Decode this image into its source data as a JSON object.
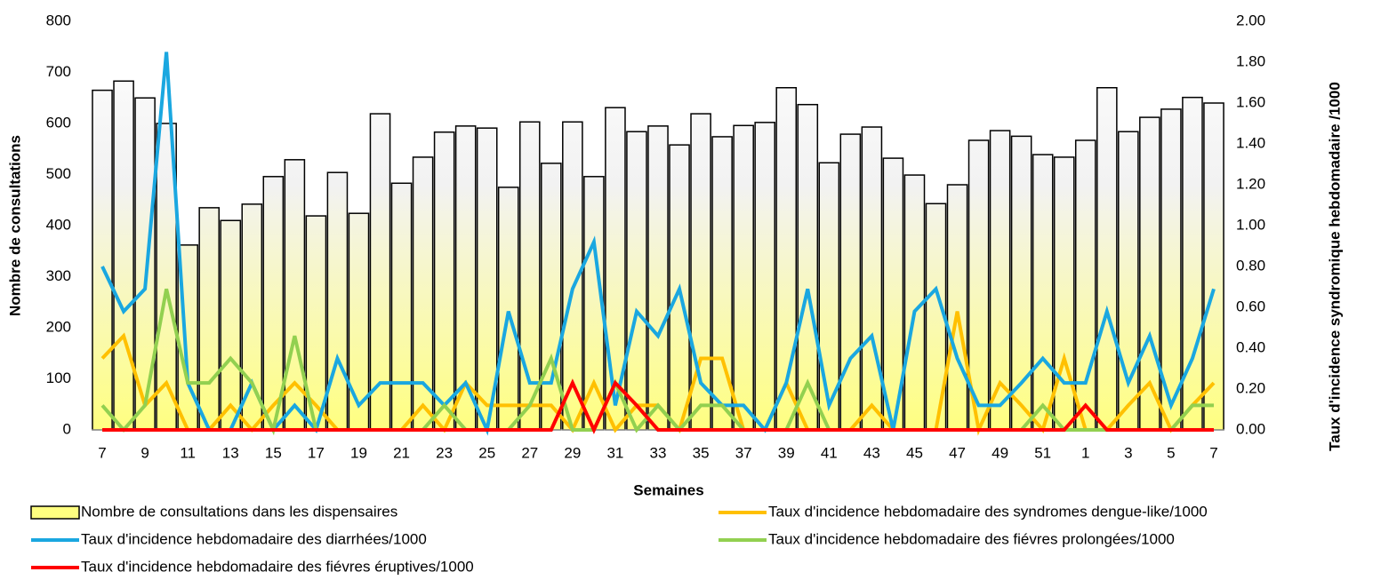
{
  "chart_data": {
    "type": "bar-line",
    "x_label": "Semaines",
    "y_label": "Nombre de consultations",
    "y2_label": "Taux d'incidence syndromique hebdomadaire /1000",
    "categories": [
      "7",
      null,
      "9",
      null,
      "11",
      null,
      "13",
      null,
      "15",
      null,
      "17",
      null,
      "19",
      null,
      "21",
      null,
      "23",
      null,
      "25",
      null,
      "27",
      null,
      "29",
      null,
      "31",
      null,
      "33",
      null,
      "35",
      null,
      "37",
      null,
      "39",
      null,
      "41",
      null,
      "43",
      null,
      "45",
      null,
      "47",
      null,
      "49",
      null,
      "51",
      null,
      "1",
      null,
      "3",
      null,
      "5",
      null,
      "7"
    ],
    "ylim": [
      0,
      800
    ],
    "yticks": [
      0,
      100,
      200,
      300,
      400,
      500,
      600,
      700,
      800
    ],
    "y2lim": [
      0,
      2
    ],
    "y2ticks": [
      {
        "value": 0,
        "label": "0.00"
      },
      {
        "value": 0.2,
        "label": "0.20"
      },
      {
        "value": 0.4,
        "label": "0.40"
      },
      {
        "value": 0.6,
        "label": "0.60"
      },
      {
        "value": 0.8,
        "label": "0.80"
      },
      {
        "value": 1,
        "label": "1.00"
      },
      {
        "value": 1.2,
        "label": "1.20"
      },
      {
        "value": 1.4,
        "label": "1.40"
      },
      {
        "value": 1.6,
        "label": "1.60"
      },
      {
        "value": 1.8,
        "label": "1.80"
      },
      {
        "value": 2,
        "label": "2.00"
      }
    ],
    "series": [
      {
        "name": "Nombre de consultations dans les dispensaires",
        "type": "bar",
        "color": "#ffff80",
        "values": [
          665,
          683,
          650,
          600,
          362,
          435,
          410,
          442,
          496,
          529,
          419,
          504,
          424,
          619,
          483,
          534,
          583,
          595,
          591,
          475,
          603,
          522,
          603,
          496,
          631,
          584,
          595,
          558,
          619,
          574,
          596,
          602,
          670,
          637,
          523,
          579,
          593,
          532,
          499,
          443,
          480,
          567,
          586,
          575,
          539,
          534,
          567,
          670,
          584,
          612,
          628,
          651,
          640
        ]
      },
      {
        "name": "Taux d'incidence hebdomadaire des syndromes dengue-like/1000",
        "type": "line",
        "axis": "y2",
        "color": "#ffc000",
        "values": [
          0.35,
          0.46,
          0.12,
          0.23,
          0,
          0,
          0.12,
          0,
          0.12,
          0.23,
          0.12,
          0,
          0,
          0,
          0,
          0.12,
          0,
          0.23,
          0.12,
          0.12,
          0.12,
          0.12,
          0,
          0.23,
          0,
          0.12,
          0.12,
          0,
          0.35,
          0.35,
          0,
          0,
          0.23,
          0,
          0,
          0,
          0.12,
          0,
          0,
          0,
          0.58,
          0,
          0.23,
          0.12,
          0,
          0.35,
          0,
          0,
          0.12,
          0.23,
          0,
          0.12,
          0.23
        ]
      },
      {
        "name": "Taux d'incidence hebdomadaire des diarrhées/1000",
        "type": "line",
        "axis": "y2",
        "color": "#1aa7e0",
        "values": [
          0.8,
          0.58,
          0.69,
          1.85,
          0.23,
          0,
          0,
          0.23,
          0,
          0.12,
          0,
          0.35,
          0.12,
          0.23,
          0.23,
          0.23,
          0.12,
          0.23,
          0,
          0.58,
          0.23,
          0.23,
          0.69,
          0.92,
          0.12,
          0.58,
          0.46,
          0.69,
          0.23,
          0.12,
          0.12,
          0,
          0.23,
          0.69,
          0.12,
          0.35,
          0.46,
          0,
          0.58,
          0.69,
          0.35,
          0.12,
          0.12,
          0.23,
          0.35,
          0.23,
          0.23,
          0.58,
          0.23,
          0.46,
          0.12,
          0.35,
          0.69
        ]
      },
      {
        "name": "Taux d'incidence hebdomadaire des fiévres prolongées/1000",
        "type": "line",
        "axis": "y2",
        "color": "#92d050",
        "values": [
          0.12,
          0,
          0.12,
          0.69,
          0.23,
          0.23,
          0.35,
          0.23,
          0,
          0.46,
          0,
          0,
          0,
          0,
          0,
          0,
          0.12,
          0,
          0,
          0,
          0.12,
          0.35,
          0,
          0,
          0.23,
          0,
          0.12,
          0,
          0.12,
          0.12,
          0,
          0,
          0,
          0.23,
          0,
          0,
          0,
          0,
          0,
          0,
          0,
          0,
          0,
          0,
          0.12,
          0,
          0,
          0,
          0,
          0,
          0,
          0.12,
          0.12
        ]
      },
      {
        "name": "Taux d'incidence hebdomadaire des fiévres éruptives/1000",
        "type": "line",
        "axis": "y2",
        "color": "#ff0000",
        "values": [
          0,
          0,
          0,
          0,
          0,
          0,
          0,
          0,
          0,
          0,
          0,
          0,
          0,
          0,
          0,
          0,
          0,
          0,
          0,
          0,
          0,
          0,
          0.23,
          0,
          0.23,
          0.12,
          0,
          0,
          0,
          0,
          0,
          0,
          0,
          0,
          0,
          0,
          0,
          0,
          0,
          0,
          0,
          0,
          0,
          0,
          0,
          0,
          0.12,
          0,
          0,
          0,
          0,
          0,
          0
        ]
      }
    ]
  }
}
